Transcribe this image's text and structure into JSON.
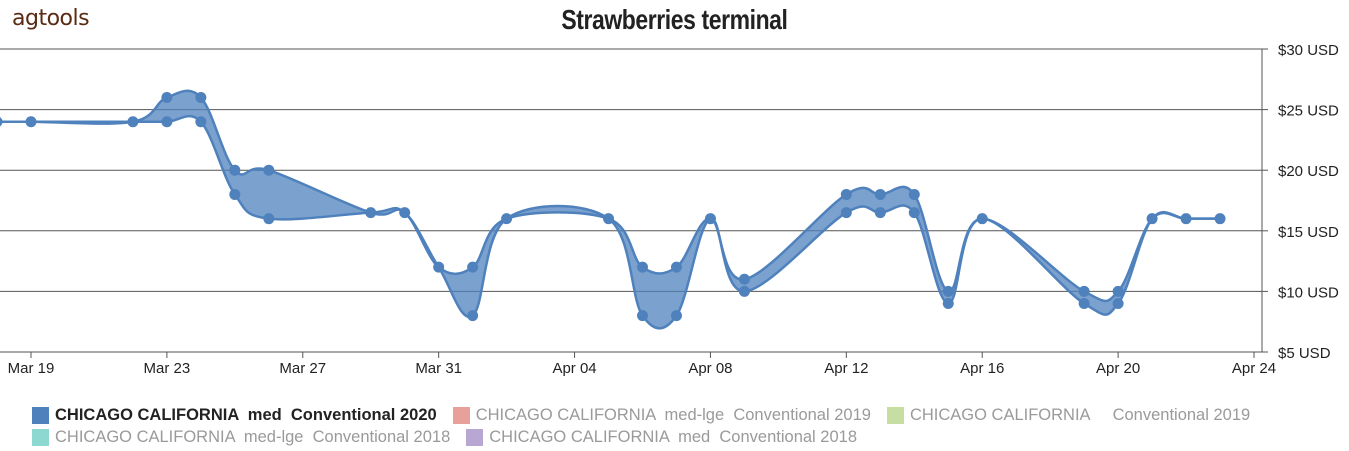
{
  "logo": "agtools",
  "chart_data": {
    "type": "area",
    "title": "Strawberries terminal",
    "xlabel": "",
    "ylabel": "",
    "ylim": [
      5,
      30
    ],
    "y_tick_labels": [
      "$5 USD",
      "$10 USD",
      "$15 USD",
      "$20 USD",
      "$25 USD",
      "$30 USD"
    ],
    "y_ticks": [
      5,
      10,
      15,
      20,
      25,
      30
    ],
    "x_tick_labels": [
      "Mar 19",
      "Mar 23",
      "Mar 27",
      "Mar 31",
      "Apr 04",
      "Apr 08",
      "Apr 12",
      "Apr 16",
      "Apr 20",
      "Apr 24"
    ],
    "x_tick_dates": [
      "2020-03-19",
      "2020-03-23",
      "2020-03-27",
      "2020-03-31",
      "2020-04-04",
      "2020-04-08",
      "2020-04-12",
      "2020-04-16",
      "2020-04-20",
      "2020-04-24"
    ],
    "x_range": [
      "2020-03-18",
      "2020-04-24"
    ],
    "grid": true,
    "legend_position": "bottom",
    "series": [
      {
        "name": "CHICAGO CALIFORNIA  med  Conventional 2020",
        "color": "#4f81bd",
        "visible": true,
        "points": [
          {
            "date": "2020-03-18",
            "low": 24,
            "high": 24
          },
          {
            "date": "2020-03-19",
            "low": 24,
            "high": 24
          },
          {
            "date": "2020-03-22",
            "low": 24,
            "high": 24
          },
          {
            "date": "2020-03-23",
            "low": 24,
            "high": 26
          },
          {
            "date": "2020-03-24",
            "low": 24,
            "high": 26
          },
          {
            "date": "2020-03-25",
            "low": 18,
            "high": 20
          },
          {
            "date": "2020-03-26",
            "low": 16,
            "high": 20
          },
          {
            "date": "2020-03-29",
            "low": 16.5,
            "high": 16.5
          },
          {
            "date": "2020-03-30",
            "low": 16.5,
            "high": 16.5
          },
          {
            "date": "2020-03-31",
            "low": 12,
            "high": 12
          },
          {
            "date": "2020-04-01",
            "low": 8,
            "high": 12
          },
          {
            "date": "2020-04-02",
            "low": 16,
            "high": 16
          },
          {
            "date": "2020-04-05",
            "low": 16,
            "high": 16
          },
          {
            "date": "2020-04-06",
            "low": 8,
            "high": 12
          },
          {
            "date": "2020-04-07",
            "low": 8,
            "high": 12
          },
          {
            "date": "2020-04-08",
            "low": 16,
            "high": 16
          },
          {
            "date": "2020-04-09",
            "low": 10,
            "high": 11
          },
          {
            "date": "2020-04-12",
            "low": 16.5,
            "high": 18
          },
          {
            "date": "2020-04-13",
            "low": 16.5,
            "high": 18
          },
          {
            "date": "2020-04-14",
            "low": 16.5,
            "high": 18
          },
          {
            "date": "2020-04-15",
            "low": 9,
            "high": 10
          },
          {
            "date": "2020-04-16",
            "low": 16,
            "high": 16
          },
          {
            "date": "2020-04-19",
            "low": 9,
            "high": 10
          },
          {
            "date": "2020-04-20",
            "low": 9,
            "high": 10
          },
          {
            "date": "2020-04-21",
            "low": 16,
            "high": 16
          },
          {
            "date": "2020-04-22",
            "low": 16,
            "high": 16
          },
          {
            "date": "2020-04-23",
            "low": 16,
            "high": 16
          }
        ]
      },
      {
        "name": "CHICAGO CALIFORNIA  med-lge  Conventional 2019",
        "color": "#e8a09a",
        "visible": false
      },
      {
        "name": "CHICAGO CALIFORNIA     Conventional 2019",
        "color": "#c6dea1",
        "visible": false
      },
      {
        "name": "CHICAGO CALIFORNIA  med-lge  Conventional 2018",
        "color": "#8ed8d2",
        "visible": false
      },
      {
        "name": "CHICAGO CALIFORNIA  med  Conventional 2018",
        "color": "#b9a7d3",
        "visible": false
      }
    ]
  }
}
